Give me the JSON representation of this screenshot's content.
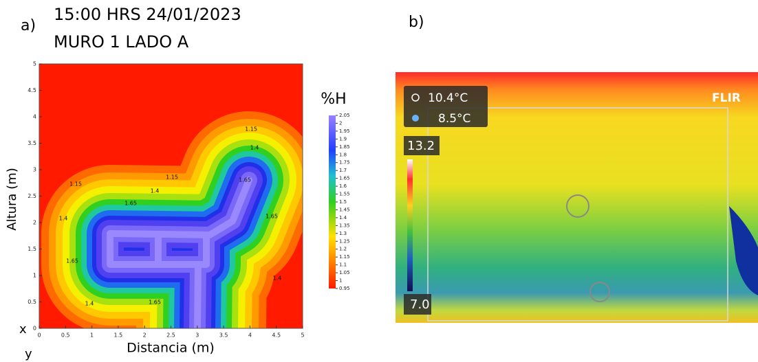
{
  "chart_data": [
    {
      "type": "contour",
      "panel_label": "a)",
      "title": "15:00 HRS 24/01/2023",
      "subtitle": "MURO 1 LADO A",
      "x_label": "Distancia (m)",
      "y_label": "Altura (m)",
      "corner_x": "x",
      "corner_y": "y",
      "xlim": [
        0,
        5
      ],
      "ylim": [
        0,
        5
      ],
      "xticks": [
        0,
        0.5,
        1,
        1.5,
        2,
        2.5,
        3,
        3.5,
        4,
        4.5,
        5
      ],
      "yticks": [
        0,
        0.5,
        1,
        1.5,
        2,
        2.5,
        3,
        3.5,
        4,
        4.5,
        5
      ],
      "colorbar_label": "%H",
      "clim": [
        0.95,
        2.05
      ],
      "cticks": [
        0.95,
        1,
        1.05,
        1.1,
        1.15,
        1.2,
        1.25,
        1.3,
        1.35,
        1.4,
        1.45,
        1.5,
        1.55,
        1.6,
        1.65,
        1.7,
        1.75,
        1.8,
        1.85,
        1.9,
        1.95,
        2,
        2.05
      ],
      "contour_labels": [
        1.15,
        1.15,
        1.15,
        1.4,
        1.4,
        1.4,
        1.4,
        1.4,
        1.65,
        1.65,
        1.65,
        1.65,
        1.65
      ]
    },
    {
      "type": "thermal-image",
      "panel_label": "b)",
      "max_temp": "10.4°C",
      "min_temp": "8.5°C",
      "scale_max": "13.2",
      "scale_min": "7.0",
      "brand": "FLIR"
    }
  ]
}
